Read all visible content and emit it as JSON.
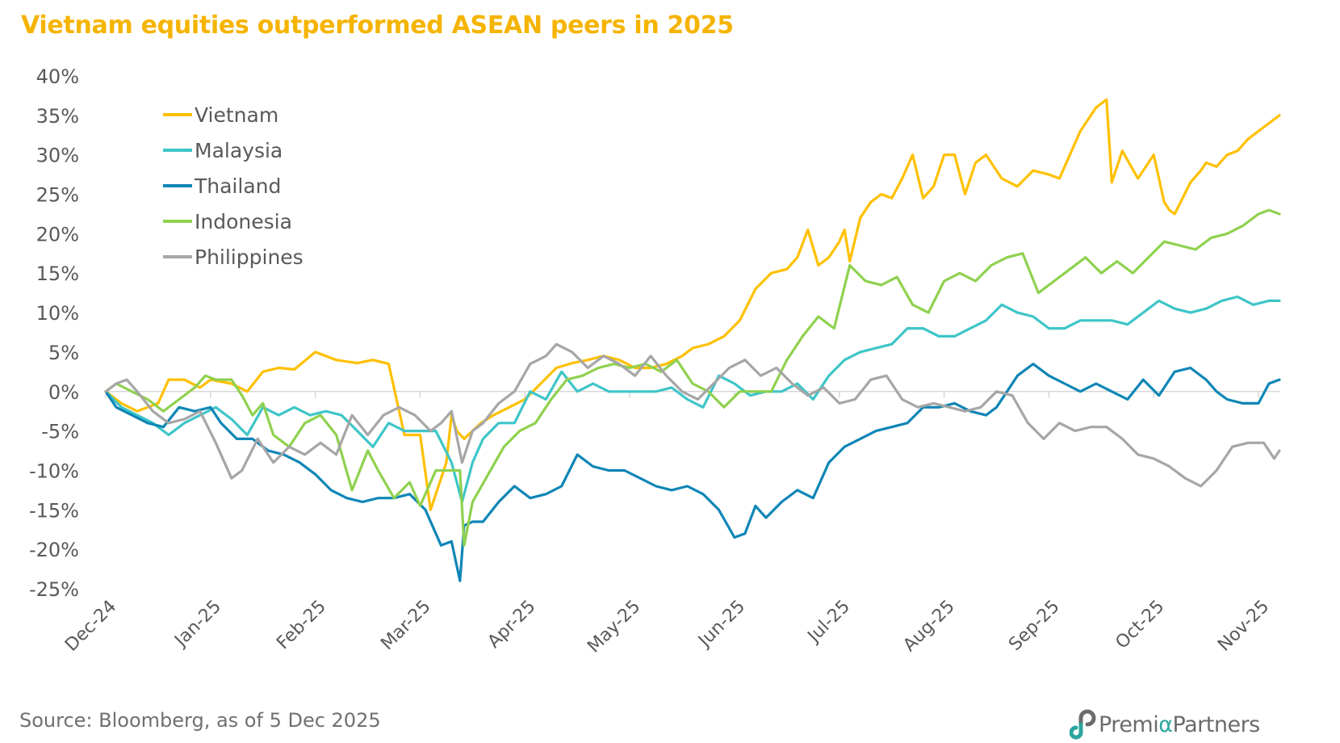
{
  "title": "Vietnam equities outperformed ASEAN peers in 2025",
  "source": "Source: Bloomberg, as of 5 Dec 2025",
  "logo": {
    "part1": "Premi",
    "alpha": "α",
    "part2": "Partners",
    "text": "PremiαPartners"
  },
  "chart_data": {
    "type": "line",
    "title": "Vietnam equities outperformed ASEAN peers in 2025",
    "xlabel": "",
    "ylabel": "",
    "ylim": [
      -25,
      40
    ],
    "yticks": [
      40,
      35,
      30,
      25,
      20,
      15,
      10,
      5,
      0,
      -5,
      -10,
      -15,
      -20,
      -25
    ],
    "ytick_labels": [
      "40%",
      "35%",
      "30%",
      "25%",
      "20%",
      "15%",
      "10%",
      "5%",
      "0%",
      "-5%",
      "-10%",
      "-15%",
      "-20%",
      "-25%"
    ],
    "xticks": [
      "Dec-24",
      "Jan-25",
      "Feb-25",
      "Mar-25",
      "Apr-25",
      "May-25",
      "Jun-25",
      "Jul-25",
      "Aug-25",
      "Sep-25",
      "Oct-25",
      "Nov-25"
    ],
    "xlim": [
      0,
      11.2
    ],
    "grid": false,
    "zero_line": true,
    "legend_position": "top-left",
    "series": [
      {
        "name": "Vietnam",
        "color": "#FFC000",
        "x": [
          0,
          0.15,
          0.3,
          0.5,
          0.6,
          0.75,
          0.9,
          1.0,
          1.2,
          1.35,
          1.5,
          1.65,
          1.8,
          2.0,
          2.2,
          2.4,
          2.55,
          2.7,
          2.85,
          3.0,
          3.1,
          3.25,
          3.3,
          3.35,
          3.42,
          3.5,
          3.58,
          3.7,
          3.85,
          4.0,
          4.15,
          4.3,
          4.45,
          4.6,
          4.75,
          4.9,
          5.05,
          5.2,
          5.35,
          5.5,
          5.6,
          5.75,
          5.9,
          6.05,
          6.2,
          6.35,
          6.5,
          6.6,
          6.7,
          6.8,
          6.9,
          7.0,
          7.05,
          7.1,
          7.2,
          7.3,
          7.4,
          7.5,
          7.6,
          7.7,
          7.8,
          7.9,
          8.0,
          8.1,
          8.2,
          8.3,
          8.4,
          8.55,
          8.7,
          8.85,
          9.0,
          9.1,
          9.2,
          9.3,
          9.45,
          9.55,
          9.6,
          9.7,
          9.85,
          10.0,
          10.1,
          10.15,
          10.2,
          10.35,
          10.45,
          10.5,
          10.6,
          10.7,
          10.8,
          10.9,
          11.0,
          11.1,
          11.2
        ],
        "y": [
          0,
          -1.5,
          -2.5,
          -1.5,
          1.5,
          1.5,
          0.5,
          1.5,
          1,
          0,
          2.5,
          3,
          2.8,
          5,
          4,
          3.6,
          4,
          3.5,
          -5.5,
          -5.5,
          -15,
          -9,
          -3,
          -5,
          -6,
          -5,
          -4,
          -3,
          -2,
          -1,
          1,
          3,
          3.6,
          4,
          4.5,
          4,
          3,
          3,
          3.5,
          4.5,
          5.5,
          6,
          7,
          9,
          13,
          15,
          15.5,
          17,
          20.5,
          16,
          17,
          19,
          20.5,
          16.5,
          22,
          24,
          25,
          24.5,
          27,
          30,
          24.5,
          26,
          30,
          30,
          25,
          29,
          30,
          27,
          26,
          28,
          27.5,
          27,
          30,
          33,
          36,
          37,
          26.5,
          30.5,
          27,
          30,
          24,
          23,
          22.5,
          26.5,
          28,
          29,
          28.5,
          30,
          30.5,
          32,
          33,
          34,
          35
        ]
      },
      {
        "name": "Malaysia",
        "color": "#3EC5C8",
        "x": [
          0,
          0.15,
          0.3,
          0.45,
          0.6,
          0.75,
          0.9,
          1.05,
          1.2,
          1.35,
          1.5,
          1.65,
          1.8,
          1.95,
          2.1,
          2.25,
          2.4,
          2.55,
          2.7,
          2.85,
          3.0,
          3.15,
          3.3,
          3.4,
          3.5,
          3.6,
          3.75,
          3.9,
          4.05,
          4.2,
          4.35,
          4.5,
          4.65,
          4.8,
          4.95,
          5.1,
          5.25,
          5.4,
          5.55,
          5.7,
          5.85,
          6.0,
          6.15,
          6.3,
          6.45,
          6.6,
          6.75,
          6.9,
          7.05,
          7.2,
          7.35,
          7.5,
          7.65,
          7.8,
          7.95,
          8.1,
          8.25,
          8.4,
          8.55,
          8.7,
          8.85,
          9.0,
          9.15,
          9.3,
          9.45,
          9.6,
          9.75,
          9.9,
          10.05,
          10.2,
          10.35,
          10.5,
          10.65,
          10.8,
          10.95,
          11.1,
          11.2
        ],
        "y": [
          0,
          -2,
          -3,
          -4,
          -5.5,
          -4,
          -3,
          -2,
          -3.5,
          -5.5,
          -2,
          -3,
          -2,
          -3,
          -2.5,
          -3,
          -5,
          -7,
          -4,
          -5,
          -5,
          -5,
          -9,
          -14,
          -9,
          -6,
          -4,
          -4,
          0,
          -1,
          2.5,
          0,
          1,
          0,
          0,
          0,
          0,
          0.5,
          -1,
          -2,
          2,
          1,
          -0.5,
          0,
          0,
          1,
          -1,
          2,
          4,
          5,
          5.5,
          6,
          8,
          8,
          7,
          7,
          8,
          9,
          11,
          10,
          9.5,
          8,
          8,
          9,
          9,
          9,
          8.5,
          10,
          11.5,
          10.5,
          10,
          10.5,
          11.5,
          12,
          11,
          11.5,
          11.5
        ]
      },
      {
        "name": "Thailand",
        "color": "#0F86B6",
        "x": [
          0,
          0.1,
          0.25,
          0.4,
          0.55,
          0.7,
          0.85,
          1.0,
          1.1,
          1.25,
          1.4,
          1.55,
          1.7,
          1.85,
          2.0,
          2.15,
          2.3,
          2.45,
          2.6,
          2.75,
          2.9,
          3.05,
          3.2,
          3.3,
          3.38,
          3.42,
          3.5,
          3.6,
          3.75,
          3.9,
          4.05,
          4.2,
          4.35,
          4.5,
          4.65,
          4.8,
          4.95,
          5.1,
          5.25,
          5.4,
          5.55,
          5.7,
          5.85,
          6.0,
          6.1,
          6.2,
          6.3,
          6.45,
          6.6,
          6.75,
          6.9,
          7.05,
          7.2,
          7.35,
          7.5,
          7.65,
          7.8,
          7.95,
          8.1,
          8.25,
          8.4,
          8.5,
          8.6,
          8.7,
          8.85,
          9.0,
          9.15,
          9.3,
          9.45,
          9.6,
          9.75,
          9.9,
          10.05,
          10.2,
          10.35,
          10.5,
          10.6,
          10.7,
          10.85,
          11.0,
          11.1,
          11.2
        ],
        "y": [
          0,
          -2,
          -3,
          -4,
          -4.5,
          -2,
          -2.5,
          -2,
          -4,
          -6,
          -6,
          -7.5,
          -8,
          -9,
          -10.5,
          -12.5,
          -13.5,
          -14,
          -13.5,
          -13.5,
          -13,
          -15,
          -19.5,
          -19,
          -24,
          -17,
          -16.5,
          -16.5,
          -14,
          -12,
          -13.5,
          -13,
          -12,
          -8,
          -9.5,
          -10,
          -10,
          -11,
          -12,
          -12.5,
          -12,
          -13,
          -15,
          -18.5,
          -18,
          -14.5,
          -16,
          -14,
          -12.5,
          -13.5,
          -9,
          -7,
          -6,
          -5,
          -4.5,
          -4,
          -2,
          -2,
          -1.5,
          -2.5,
          -3,
          -2,
          0,
          2,
          3.5,
          2,
          1,
          0,
          1,
          0,
          -1,
          1.5,
          -0.5,
          2.5,
          3,
          1.5,
          0,
          -1,
          -1.5,
          -1.5,
          1,
          1.5
        ]
      },
      {
        "name": "Indonesia",
        "color": "#8FD14F",
        "x": [
          0,
          0.1,
          0.25,
          0.4,
          0.55,
          0.7,
          0.85,
          0.95,
          1.05,
          1.2,
          1.3,
          1.4,
          1.5,
          1.6,
          1.75,
          1.9,
          2.05,
          2.2,
          2.35,
          2.5,
          2.6,
          2.75,
          2.9,
          3.0,
          3.15,
          3.3,
          3.38,
          3.42,
          3.5,
          3.65,
          3.8,
          3.95,
          4.1,
          4.25,
          4.4,
          4.55,
          4.7,
          4.85,
          5.0,
          5.15,
          5.3,
          5.45,
          5.6,
          5.75,
          5.9,
          6.05,
          6.2,
          6.35,
          6.5,
          6.65,
          6.8,
          6.95,
          7.1,
          7.25,
          7.4,
          7.55,
          7.7,
          7.85,
          8.0,
          8.15,
          8.3,
          8.45,
          8.6,
          8.75,
          8.9,
          9.05,
          9.2,
          9.35,
          9.5,
          9.65,
          9.8,
          9.95,
          10.1,
          10.25,
          10.4,
          10.55,
          10.7,
          10.85,
          11.0,
          11.1,
          11.2
        ],
        "y": [
          0,
          1,
          0,
          -1,
          -2.5,
          -1,
          0.5,
          2,
          1.5,
          1.5,
          -0.5,
          -3,
          -1.5,
          -5.5,
          -7,
          -4,
          -3,
          -5.5,
          -12.5,
          -7.5,
          -10,
          -13.5,
          -11.5,
          -14.5,
          -10,
          -10,
          -10,
          -19.5,
          -14,
          -10.5,
          -7,
          -5,
          -4,
          -1,
          1.5,
          2,
          3,
          3.5,
          3,
          3.5,
          2.5,
          4,
          1,
          0,
          -2,
          0,
          0,
          0,
          4,
          7,
          9.5,
          8,
          16,
          14,
          13.5,
          14.5,
          11,
          10,
          14,
          15,
          14,
          16,
          17,
          17.5,
          12.5,
          14,
          15.5,
          17,
          15,
          16.5,
          15,
          17,
          19,
          18.5,
          18,
          19.5,
          20,
          21,
          22.5,
          23,
          22.5
        ]
      },
      {
        "name": "Philippines",
        "color": "#A6A6A6",
        "x": [
          0,
          0.1,
          0.2,
          0.3,
          0.45,
          0.6,
          0.75,
          0.9,
          1.05,
          1.2,
          1.3,
          1.45,
          1.6,
          1.75,
          1.9,
          2.05,
          2.2,
          2.35,
          2.5,
          2.65,
          2.8,
          2.95,
          3.1,
          3.2,
          3.3,
          3.4,
          3.5,
          3.6,
          3.75,
          3.9,
          4.05,
          4.2,
          4.3,
          4.45,
          4.6,
          4.75,
          4.9,
          5.05,
          5.2,
          5.35,
          5.5,
          5.65,
          5.8,
          5.95,
          6.1,
          6.25,
          6.4,
          6.55,
          6.7,
          6.85,
          7.0,
          7.15,
          7.3,
          7.45,
          7.6,
          7.75,
          7.9,
          8.05,
          8.2,
          8.35,
          8.5,
          8.65,
          8.8,
          8.95,
          9.1,
          9.25,
          9.4,
          9.55,
          9.7,
          9.85,
          10.0,
          10.15,
          10.3,
          10.45,
          10.6,
          10.75,
          10.9,
          11.05,
          11.15,
          11.2
        ],
        "y": [
          0,
          1,
          1.5,
          0,
          -2.5,
          -4,
          -3.5,
          -2.5,
          -6.5,
          -11,
          -10,
          -6,
          -9,
          -7,
          -8,
          -6.5,
          -8,
          -3,
          -5.5,
          -3,
          -2,
          -3,
          -5,
          -4,
          -2.5,
          -9,
          -5,
          -4,
          -1.5,
          0,
          3.5,
          4.5,
          6,
          5,
          3,
          4.5,
          3.5,
          2,
          4.5,
          2,
          0,
          -1,
          1,
          3,
          4,
          2,
          3,
          1,
          -0.5,
          0.5,
          -1.5,
          -1,
          1.5,
          2,
          -1,
          -2,
          -1.5,
          -2,
          -2.5,
          -2,
          0,
          -0.5,
          -4,
          -6,
          -4,
          -5,
          -4.5,
          -4.5,
          -6,
          -8,
          -8.5,
          -9.5,
          -11,
          -12,
          -10,
          -7,
          -6.5,
          -6.5,
          -8.5,
          -7.5
        ]
      }
    ]
  }
}
